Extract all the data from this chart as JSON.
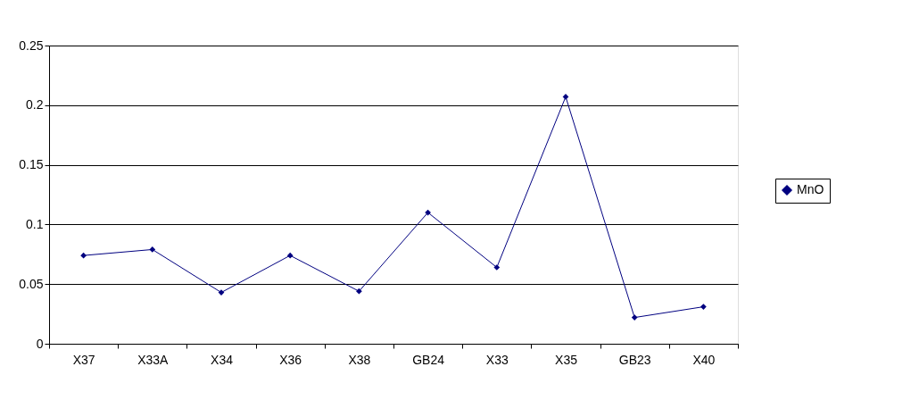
{
  "chart_data": {
    "type": "line",
    "categories": [
      "X37",
      "X33A",
      "X34",
      "X36",
      "X38",
      "GB24",
      "X33",
      "X35",
      "GB23",
      "X40"
    ],
    "series": [
      {
        "name": "MnO",
        "color": "#000080",
        "values": [
          0.074,
          0.079,
          0.043,
          0.074,
          0.044,
          0.11,
          0.064,
          0.207,
          0.022,
          0.031
        ]
      }
    ],
    "ylim": [
      0,
      0.25
    ],
    "yticks": [
      0,
      0.05,
      0.1,
      0.15,
      0.2,
      0.25
    ],
    "grid": "y",
    "legend": "right",
    "marker": "diamond",
    "line_style": "solid"
  }
}
